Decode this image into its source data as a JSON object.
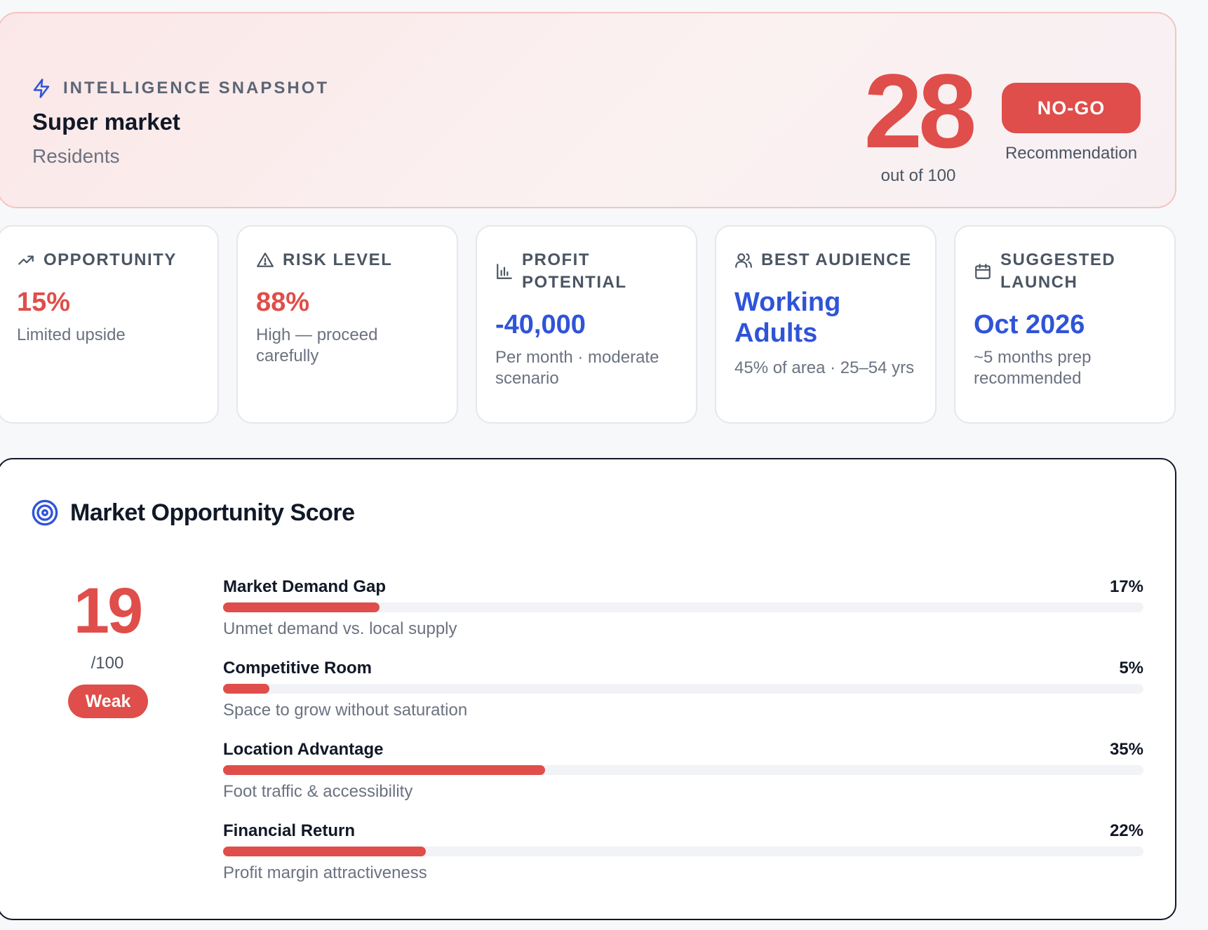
{
  "snapshot": {
    "eyebrow": "INTELLIGENCE SNAPSHOT",
    "title": "Super market",
    "subtitle": "Residents",
    "score": "28",
    "score_caption": "out of 100",
    "recommendation_label": "NO-GO",
    "recommendation_caption": "Recommendation"
  },
  "metrics": [
    {
      "title": "OPPORTUNITY",
      "icon": "trending-up-icon",
      "value": "15%",
      "desc": "Limited upside",
      "accent": "#df4e4a"
    },
    {
      "title": "RISK LEVEL",
      "icon": "warning-triangle-icon",
      "value": "88%",
      "desc": "High — proceed carefully",
      "accent": "#df4e4a"
    },
    {
      "title": "PROFIT POTENTIAL",
      "icon": "bar-chart-icon",
      "value": "-40,000",
      "desc": "Per month · moderate scenario",
      "accent": "#2f54d8"
    },
    {
      "title": "BEST AUDIENCE",
      "icon": "users-icon",
      "value": "Working Adults",
      "desc": "45% of area · 25–54 yrs",
      "accent": "#2f54d8"
    },
    {
      "title": "SUGGESTED LAUNCH",
      "icon": "calendar-icon",
      "value": "Oct 2026",
      "desc": "~5 months prep recommended",
      "accent": "#2f54d8"
    }
  ],
  "market": {
    "title": "Market Opportunity Score",
    "score": "19",
    "total": "/100",
    "rating": "Weak",
    "factors": [
      {
        "label": "Market Demand Gap",
        "percent_label": "17%",
        "value": 17,
        "desc": "Unmet demand vs. local supply"
      },
      {
        "label": "Competitive Room",
        "percent_label": "5%",
        "value": 5,
        "desc": "Space to grow without saturation"
      },
      {
        "label": "Location Advantage",
        "percent_label": "35%",
        "value": 35,
        "desc": "Foot traffic & accessibility"
      },
      {
        "label": "Financial Return",
        "percent_label": "22%",
        "value": 22,
        "desc": "Profit margin attractiveness"
      }
    ]
  },
  "colors": {
    "danger": "#df4e4a",
    "primary": "#2f54d8",
    "muted": "#6b7280"
  }
}
